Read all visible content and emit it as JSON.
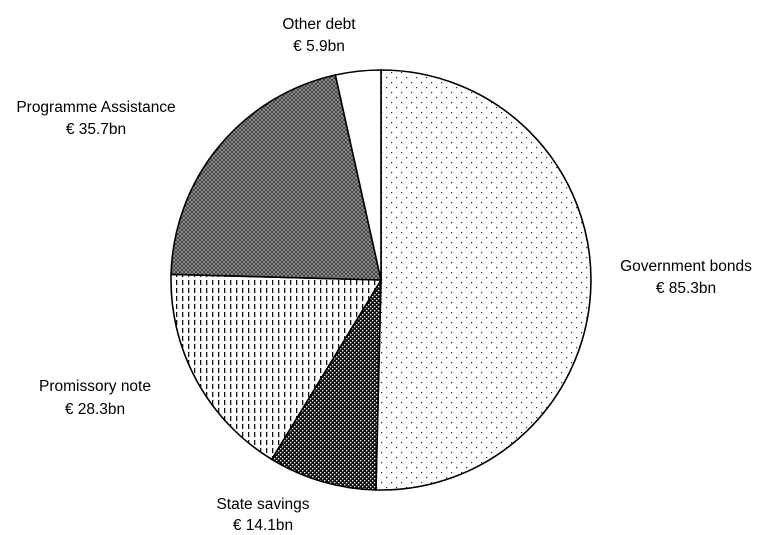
{
  "chart_data": {
    "type": "pie",
    "title": "",
    "slices": [
      {
        "name": "Government bonds",
        "value_label": "€ 85.3bn",
        "value": 85.3,
        "pattern": "dots-sparse"
      },
      {
        "name": "State savings",
        "value_label": "€ 14.1bn",
        "value": 14.1,
        "pattern": "dense-dark"
      },
      {
        "name": "Promissory note",
        "value_label": "€ 28.3bn",
        "value": 28.3,
        "pattern": "vertical-dashes"
      },
      {
        "name": "Programme Assistance",
        "value_label": "€ 35.7bn",
        "value": 35.7,
        "pattern": "crosshatch-grey"
      },
      {
        "name": "Other debt",
        "value_label": "€ 5.9bn",
        "value": 5.9,
        "pattern": "none"
      }
    ],
    "legend": "none",
    "start_angle_deg": 0,
    "direction": "clockwise"
  }
}
